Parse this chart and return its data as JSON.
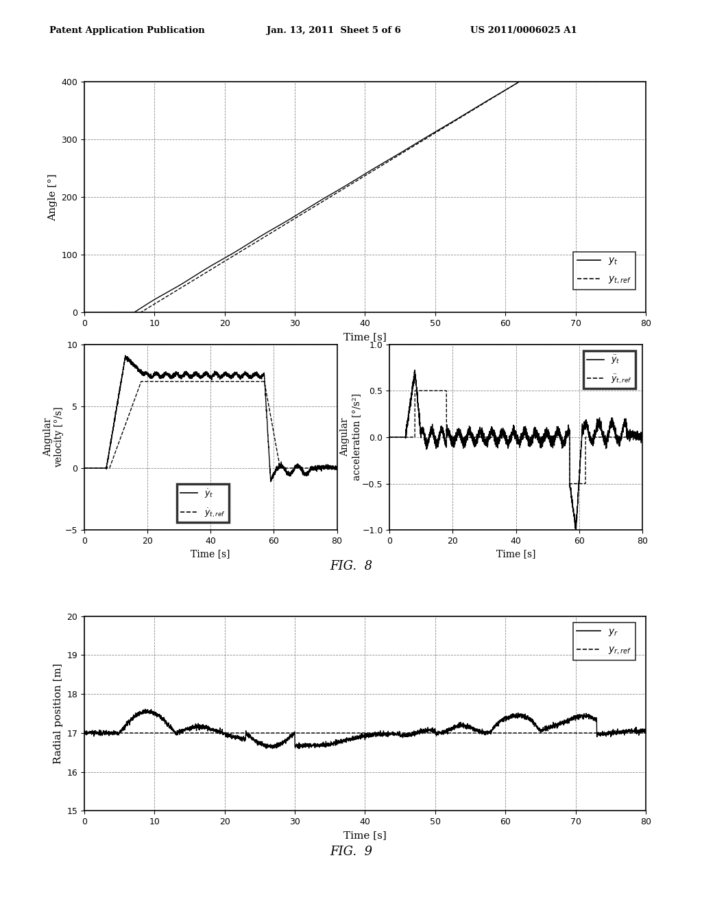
{
  "header_left": "Patent Application Publication",
  "header_mid": "Jan. 13, 2011  Sheet 5 of 6",
  "header_right": "US 2011/0006025 A1",
  "fig8_label": "FIG.  8",
  "fig9_label": "FIG.  9",
  "bg_color": "#ffffff",
  "plot1": {
    "xlabel": "Time [s]",
    "ylabel": "Angle [°]",
    "xlim": [
      0,
      80
    ],
    "ylim": [
      0,
      400
    ],
    "xticks": [
      0,
      10,
      20,
      30,
      40,
      50,
      60,
      70,
      80
    ],
    "yticks": [
      0,
      100,
      200,
      300,
      400
    ],
    "legend_solid": "$y_t$",
    "legend_dashed": "$y_{t,ref}$"
  },
  "plot2": {
    "xlabel": "Time [s]",
    "ylabel": "Angular\nvelocity [°/s]",
    "xlim": [
      0,
      80
    ],
    "ylim": [
      -5,
      10
    ],
    "xticks": [
      0,
      20,
      40,
      60,
      80
    ],
    "yticks": [
      -5,
      0,
      5,
      10
    ],
    "legend_solid": "$\\dot{y}_t$",
    "legend_dashed": "$\\dot{y}_{t,ref}$"
  },
  "plot3": {
    "xlabel": "Time [s]",
    "ylabel": "Angular\nacceleration [°/s²]",
    "xlim": [
      0,
      80
    ],
    "ylim": [
      -1,
      1
    ],
    "xticks": [
      0,
      20,
      40,
      60,
      80
    ],
    "yticks": [
      -1,
      -0.5,
      0,
      0.5,
      1
    ],
    "legend_solid": "$\\ddot{y}_t$",
    "legend_dashed": "$\\ddot{y}_{t,ref}$"
  },
  "plot4": {
    "xlabel": "Time [s]",
    "ylabel": "Radial position [m]",
    "xlim": [
      0,
      80
    ],
    "ylim": [
      15,
      20
    ],
    "xticks": [
      0,
      10,
      20,
      30,
      40,
      50,
      60,
      70,
      80
    ],
    "yticks": [
      15,
      16,
      17,
      18,
      19,
      20
    ],
    "legend_solid": "$y_r$",
    "legend_dashed": "$y_{r,ref}$"
  }
}
